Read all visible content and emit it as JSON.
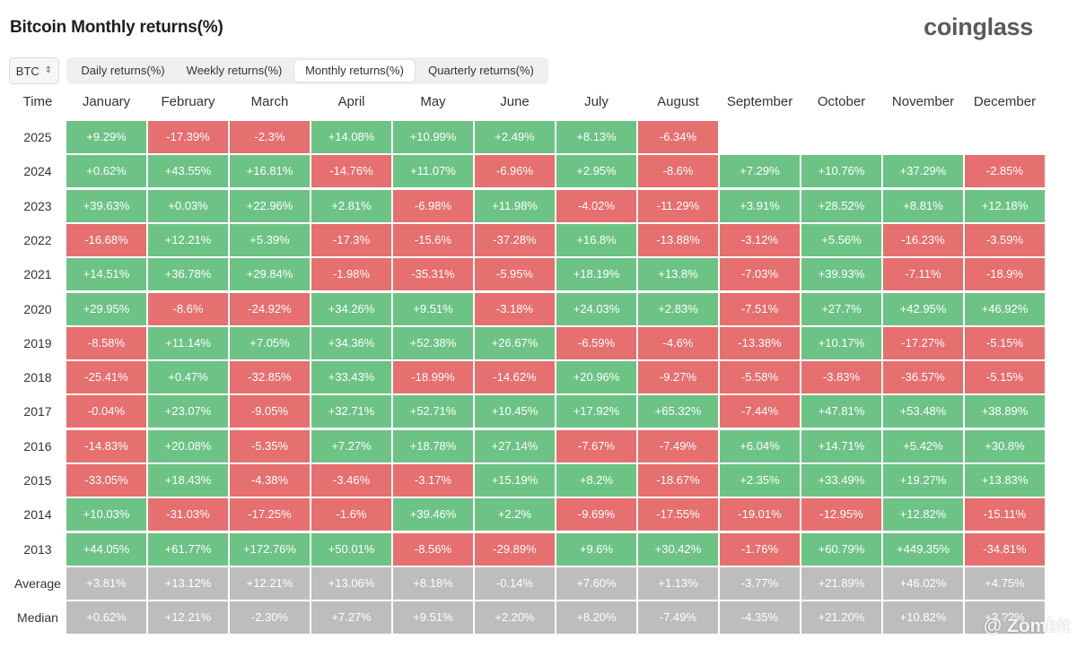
{
  "header": {
    "title": "Bitcoin Monthly returns(%)",
    "brand": "coinglass"
  },
  "asset_select": {
    "value": "BTC",
    "icon": "up-down-chevron-icon"
  },
  "tabs": [
    {
      "label": "Daily returns(%)",
      "active": false
    },
    {
      "label": "Weekly returns(%)",
      "active": false
    },
    {
      "label": "Monthly returns(%)",
      "active": true
    },
    {
      "label": "Quarterly returns(%)",
      "active": false
    }
  ],
  "table": {
    "corner": "Time",
    "months": [
      "January",
      "February",
      "March",
      "April",
      "May",
      "June",
      "July",
      "August",
      "September",
      "October",
      "November",
      "December"
    ],
    "rows": [
      {
        "label": "2025",
        "kind": "year",
        "cells": [
          "+9.29%",
          "-17.39%",
          "-2.3%",
          "+14.08%",
          "+10.99%",
          "+2.49%",
          "+8.13%",
          "-6.34%",
          "",
          "",
          "",
          ""
        ]
      },
      {
        "label": "2024",
        "kind": "year",
        "cells": [
          "+0.62%",
          "+43.55%",
          "+16.81%",
          "-14.76%",
          "+11.07%",
          "-6.96%",
          "+2.95%",
          "-8.6%",
          "+7.29%",
          "+10.76%",
          "+37.29%",
          "-2.85%"
        ]
      },
      {
        "label": "2023",
        "kind": "year",
        "cells": [
          "+39.63%",
          "+0.03%",
          "+22.96%",
          "+2.81%",
          "-6.98%",
          "+11.98%",
          "-4.02%",
          "-11.29%",
          "+3.91%",
          "+28.52%",
          "+8.81%",
          "+12.18%"
        ]
      },
      {
        "label": "2022",
        "kind": "year",
        "cells": [
          "-16.68%",
          "+12.21%",
          "+5.39%",
          "-17.3%",
          "-15.6%",
          "-37.28%",
          "+16.8%",
          "-13.88%",
          "-3.12%",
          "+5.56%",
          "-16.23%",
          "-3.59%"
        ]
      },
      {
        "label": "2021",
        "kind": "year",
        "cells": [
          "+14.51%",
          "+36.78%",
          "+29.84%",
          "-1.98%",
          "-35.31%",
          "-5.95%",
          "+18.19%",
          "+13.8%",
          "-7.03%",
          "+39.93%",
          "-7.11%",
          "-18.9%"
        ]
      },
      {
        "label": "2020",
        "kind": "year",
        "cells": [
          "+29.95%",
          "-8.6%",
          "-24.92%",
          "+34.26%",
          "+9.51%",
          "-3.18%",
          "+24.03%",
          "+2.83%",
          "-7.51%",
          "+27.7%",
          "+42.95%",
          "+46.92%"
        ]
      },
      {
        "label": "2019",
        "kind": "year",
        "cells": [
          "-8.58%",
          "+11.14%",
          "+7.05%",
          "+34.36%",
          "+52.38%",
          "+26.67%",
          "-6.59%",
          "-4.6%",
          "-13.38%",
          "+10.17%",
          "-17.27%",
          "-5.15%"
        ]
      },
      {
        "label": "2018",
        "kind": "year",
        "cells": [
          "-25.41%",
          "+0.47%",
          "-32.85%",
          "+33.43%",
          "-18.99%",
          "-14.62%",
          "+20.96%",
          "-9.27%",
          "-5.58%",
          "-3.83%",
          "-36.57%",
          "-5.15%"
        ]
      },
      {
        "label": "2017",
        "kind": "year",
        "cells": [
          "-0.04%",
          "+23.07%",
          "-9.05%",
          "+32.71%",
          "+52.71%",
          "+10.45%",
          "+17.92%",
          "+65.32%",
          "-7.44%",
          "+47.81%",
          "+53.48%",
          "+38.89%"
        ]
      },
      {
        "label": "2016",
        "kind": "year",
        "cells": [
          "-14.83%",
          "+20.08%",
          "-5.35%",
          "+7.27%",
          "+18.78%",
          "+27.14%",
          "-7.67%",
          "-7.49%",
          "+6.04%",
          "+14.71%",
          "+5.42%",
          "+30.8%"
        ]
      },
      {
        "label": "2015",
        "kind": "year",
        "cells": [
          "-33.05%",
          "+18.43%",
          "-4.38%",
          "-3.46%",
          "-3.17%",
          "+15.19%",
          "+8.2%",
          "-18.67%",
          "+2.35%",
          "+33.49%",
          "+19.27%",
          "+13.83%"
        ]
      },
      {
        "label": "2014",
        "kind": "year",
        "cells": [
          "+10.03%",
          "-31.03%",
          "-17.25%",
          "-1.6%",
          "+39.46%",
          "+2.2%",
          "-9.69%",
          "-17.55%",
          "-19.01%",
          "-12.95%",
          "+12.82%",
          "-15.11%"
        ]
      },
      {
        "label": "2013",
        "kind": "year",
        "cells": [
          "+44.05%",
          "+61.77%",
          "+172.76%",
          "+50.01%",
          "-8.56%",
          "-29.89%",
          "+9.6%",
          "+30.42%",
          "-1.76%",
          "+60.79%",
          "+449.35%",
          "-34.81%"
        ]
      },
      {
        "label": "Average",
        "kind": "stat",
        "cells": [
          "+3.81%",
          "+13.12%",
          "+12.21%",
          "+13.06%",
          "+8.18%",
          "-0.14%",
          "+7.60%",
          "+1.13%",
          "-3.77%",
          "+21.89%",
          "+46.02%",
          "+4.75%"
        ]
      },
      {
        "label": "Median",
        "kind": "stat",
        "cells": [
          "+0.62%",
          "+12.21%",
          "-2.30%",
          "+7.27%",
          "+9.51%",
          "+2.20%",
          "+8.20%",
          "-7.49%",
          "-4.35%",
          "+21.20%",
          "+10.82%",
          "+3.??%"
        ]
      }
    ]
  },
  "colors": {
    "positive": "#6cc385",
    "negative": "#e66f6f",
    "stat": "#bdbdbd"
  },
  "watermark": "@ Zombit"
}
